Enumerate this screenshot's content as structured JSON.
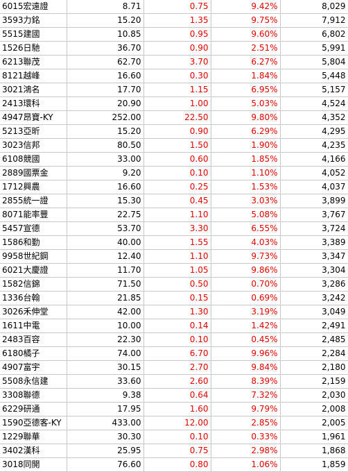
{
  "rows": [
    {
      "name": "6015宏遠證",
      "price": "8.71",
      "change": "0.75",
      "pct": "9.42%",
      "volume": "8,029"
    },
    {
      "name": "3593力銘",
      "price": "15.20",
      "change": "1.35",
      "pct": "9.75%",
      "volume": "7,912"
    },
    {
      "name": "5515建國",
      "price": "10.85",
      "change": "0.95",
      "pct": "9.60%",
      "volume": "6,802"
    },
    {
      "name": "1526日馳",
      "price": "36.70",
      "change": "0.90",
      "pct": "2.51%",
      "volume": "5,991"
    },
    {
      "name": "6213聯茂",
      "price": "62.70",
      "change": "3.70",
      "pct": "6.27%",
      "volume": "5,804"
    },
    {
      "name": "8121越峰",
      "price": "16.60",
      "change": "0.30",
      "pct": "1.84%",
      "volume": "5,448"
    },
    {
      "name": "3021鴻名",
      "price": "17.70",
      "change": "1.15",
      "pct": "6.95%",
      "volume": "5,157"
    },
    {
      "name": "2413環科",
      "price": "20.90",
      "change": "1.00",
      "pct": "5.03%",
      "volume": "4,524"
    },
    {
      "name": "4947昂寶-KY",
      "price": "252.00",
      "change": "22.50",
      "pct": "9.80%",
      "volume": "4,352"
    },
    {
      "name": "5213亞昕",
      "price": "15.20",
      "change": "0.90",
      "pct": "6.29%",
      "volume": "4,295"
    },
    {
      "name": "3023信邦",
      "price": "80.50",
      "change": "1.50",
      "pct": "1.90%",
      "volume": "4,235"
    },
    {
      "name": "6108競國",
      "price": "33.00",
      "change": "0.60",
      "pct": "1.85%",
      "volume": "4,166"
    },
    {
      "name": "2889國票金",
      "price": "9.20",
      "change": "0.10",
      "pct": "1.10%",
      "volume": "4,052"
    },
    {
      "name": "1712興農",
      "price": "16.60",
      "change": "0.25",
      "pct": "1.53%",
      "volume": "4,037"
    },
    {
      "name": "2855統一證",
      "price": "15.30",
      "change": "0.45",
      "pct": "3.03%",
      "volume": "3,899"
    },
    {
      "name": "8071能率豐",
      "price": "22.75",
      "change": "1.10",
      "pct": "5.08%",
      "volume": "3,767"
    },
    {
      "name": "5457宣德",
      "price": "53.70",
      "change": "3.30",
      "pct": "6.55%",
      "volume": "3,724"
    },
    {
      "name": "1586和勤",
      "price": "40.00",
      "change": "1.55",
      "pct": "4.03%",
      "volume": "3,389"
    },
    {
      "name": "9958世紀鋼",
      "price": "12.40",
      "change": "1.10",
      "pct": "9.73%",
      "volume": "3,347"
    },
    {
      "name": "6021大慶證",
      "price": "11.70",
      "change": "1.05",
      "pct": "9.86%",
      "volume": "3,304"
    },
    {
      "name": "1582信錦",
      "price": "71.50",
      "change": "0.50",
      "pct": "0.70%",
      "volume": "3,286"
    },
    {
      "name": "1336台翰",
      "price": "21.85",
      "change": "0.15",
      "pct": "0.69%",
      "volume": "3,242"
    },
    {
      "name": "3026禾伸堂",
      "price": "42.00",
      "change": "1.30",
      "pct": "3.19%",
      "volume": "3,049"
    },
    {
      "name": "1611中電",
      "price": "10.00",
      "change": "0.14",
      "pct": "1.42%",
      "volume": "2,491"
    },
    {
      "name": "2483百容",
      "price": "22.30",
      "change": "0.10",
      "pct": "0.45%",
      "volume": "2,485"
    },
    {
      "name": "6180橘子",
      "price": "74.00",
      "change": "6.70",
      "pct": "9.96%",
      "volume": "2,284"
    },
    {
      "name": "4907富宇",
      "price": "30.15",
      "change": "2.70",
      "pct": "9.84%",
      "volume": "2,180"
    },
    {
      "name": "5508永信建",
      "price": "33.60",
      "change": "2.60",
      "pct": "8.39%",
      "volume": "2,159"
    },
    {
      "name": "3308聯德",
      "price": "9.38",
      "change": "0.64",
      "pct": "7.32%",
      "volume": "2,030"
    },
    {
      "name": "6229研通",
      "price": "17.95",
      "change": "1.60",
      "pct": "9.79%",
      "volume": "2,008"
    },
    {
      "name": "1590亞德客-KY",
      "price": "433.00",
      "change": "12.00",
      "pct": "2.85%",
      "volume": "2,005"
    },
    {
      "name": "1229聯華",
      "price": "30.30",
      "change": "0.10",
      "pct": "0.33%",
      "volume": "1,961"
    },
    {
      "name": "3402漢科",
      "price": "25.95",
      "change": "0.75",
      "pct": "2.98%",
      "volume": "1,868"
    },
    {
      "name": "3018同開",
      "price": "76.60",
      "change": "0.80",
      "pct": "1.06%",
      "volume": "1,859"
    }
  ]
}
